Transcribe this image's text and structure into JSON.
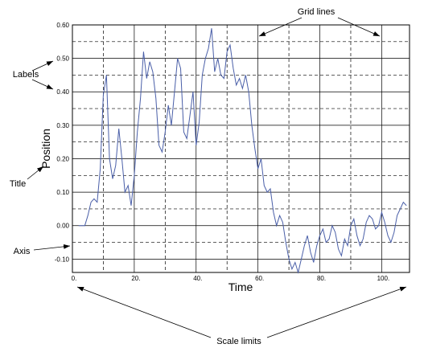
{
  "chart_data": {
    "type": "line",
    "xlabel": "Time",
    "ylabel": "Position",
    "xlim": [
      0,
      109
    ],
    "ylim": [
      -0.14,
      0.6
    ],
    "grid": true,
    "x_ticks": [
      0,
      20,
      40,
      60,
      80,
      100
    ],
    "x_tick_labels": [
      "0.",
      "20.",
      "40.",
      "60.",
      "80.",
      "100."
    ],
    "x_minor_gridlines": [
      10,
      30,
      50,
      70,
      90
    ],
    "y_ticks": [
      -0.1,
      0.0,
      0.1,
      0.2,
      0.3,
      0.4,
      0.5,
      0.6
    ],
    "y_tick_labels": [
      "-0.10",
      "0.00",
      "0.10",
      "0.20",
      "0.30",
      "0.40",
      "0.50",
      "0.60"
    ],
    "y_minor_gridlines": [
      -0.05,
      0.05,
      0.15,
      0.25,
      0.35,
      0.45,
      0.55
    ],
    "line_color": "#4a5fa8",
    "series": [
      {
        "x": [
          2,
          3,
          4,
          5,
          6,
          7,
          8,
          9,
          10,
          11,
          12,
          13,
          14,
          15,
          16,
          17,
          18,
          19,
          20,
          21,
          22,
          23,
          24,
          25,
          26,
          27,
          28,
          29,
          30,
          31,
          32,
          33,
          34,
          35,
          36,
          37,
          38,
          39,
          40,
          41,
          42,
          43,
          44,
          45,
          46,
          47,
          48,
          49,
          50,
          51,
          52,
          53,
          54,
          55,
          56,
          57,
          58,
          59,
          60,
          61,
          62,
          63,
          64,
          65,
          66,
          67,
          68,
          69,
          70,
          71,
          72,
          73,
          74,
          75,
          76,
          77,
          78,
          79,
          80,
          81,
          82,
          83,
          84,
          85,
          86,
          87,
          88,
          89,
          90,
          91,
          92,
          93,
          94,
          95,
          96,
          97,
          98,
          99,
          100,
          101,
          102,
          103,
          104,
          105,
          106,
          107,
          108
        ],
        "y": [
          0.0,
          0.0,
          0.0,
          0.03,
          0.07,
          0.08,
          0.07,
          0.17,
          0.39,
          0.45,
          0.2,
          0.14,
          0.18,
          0.29,
          0.2,
          0.1,
          0.12,
          0.06,
          0.15,
          0.28,
          0.38,
          0.52,
          0.44,
          0.49,
          0.46,
          0.38,
          0.24,
          0.22,
          0.28,
          0.36,
          0.3,
          0.4,
          0.5,
          0.47,
          0.28,
          0.26,
          0.33,
          0.4,
          0.24,
          0.31,
          0.45,
          0.5,
          0.53,
          0.59,
          0.46,
          0.5,
          0.45,
          0.44,
          0.52,
          0.54,
          0.47,
          0.42,
          0.44,
          0.41,
          0.45,
          0.4,
          0.3,
          0.23,
          0.17,
          0.2,
          0.12,
          0.1,
          0.11,
          0.04,
          0.0,
          0.03,
          0.01,
          -0.05,
          -0.1,
          -0.13,
          -0.11,
          -0.14,
          -0.1,
          -0.06,
          -0.03,
          -0.08,
          -0.11,
          -0.06,
          -0.03,
          -0.01,
          -0.05,
          -0.04,
          0.0,
          -0.02,
          -0.07,
          -0.09,
          -0.04,
          -0.06,
          0.0,
          0.02,
          -0.03,
          -0.06,
          -0.04,
          0.01,
          0.03,
          0.02,
          -0.01,
          0.0,
          0.04,
          0.01,
          -0.03,
          -0.05,
          -0.02,
          0.03,
          0.05,
          0.07,
          0.06
        ]
      }
    ]
  },
  "annotations": {
    "grid_lines": "Grid lines",
    "labels": "Labels",
    "title": "Title",
    "axis": "Axis",
    "scale_limits": "Scale limits"
  }
}
